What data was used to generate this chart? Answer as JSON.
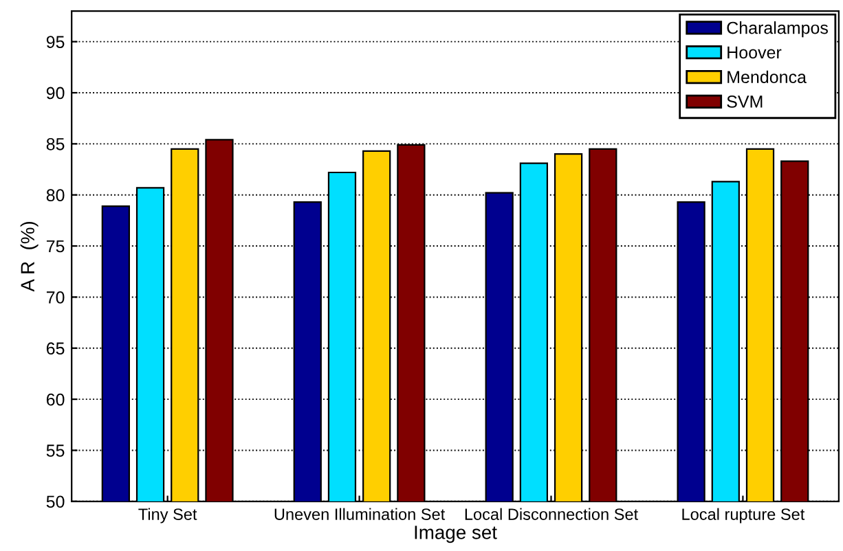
{
  "chart_data": {
    "type": "bar",
    "xlabel": "Image set",
    "ylabel": "A R  (%)",
    "categories": [
      "Tiny Set",
      "Uneven Illumination Set",
      "Local Disconnection Set",
      "Local rupture Set"
    ],
    "series": [
      {
        "name": "Charalampos",
        "color": "#00008f",
        "values": [
          78.9,
          79.3,
          80.2,
          79.3
        ]
      },
      {
        "name": "Hoover",
        "color": "#00dfff",
        "values": [
          80.7,
          82.2,
          83.1,
          81.3
        ]
      },
      {
        "name": "Mendonca",
        "color": "#ffcf00",
        "values": [
          84.5,
          84.3,
          84.0,
          84.5
        ]
      },
      {
        "name": "SVM",
        "color": "#800000",
        "values": [
          85.4,
          84.9,
          84.5,
          83.3
        ]
      }
    ],
    "ylim": [
      50,
      98
    ],
    "yticks": [
      50,
      55,
      60,
      65,
      70,
      75,
      80,
      85,
      90,
      95
    ],
    "grid": "y",
    "legend": "top right"
  }
}
